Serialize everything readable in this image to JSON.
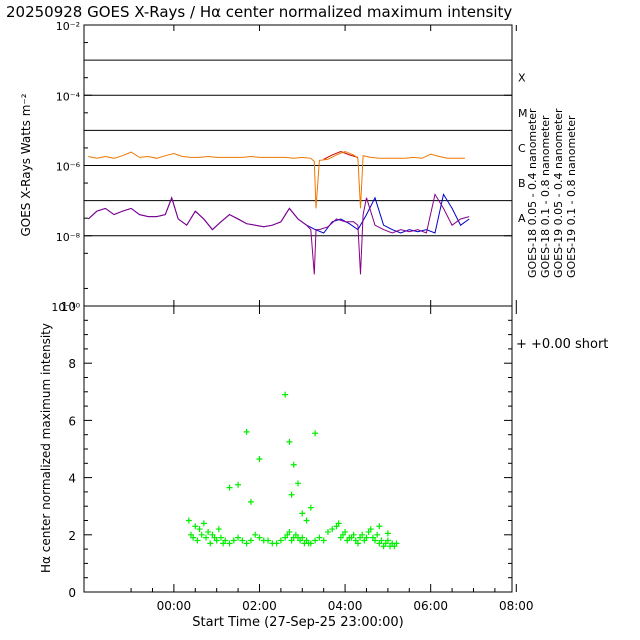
{
  "title": "20250928 GOES X-Rays / Hα center normalized maximum intensity",
  "colors": {
    "goes18_short": "#0000cc",
    "goes18_long": "#cc0000",
    "goes19_short": "#880088",
    "goes19_long": "#ee7700",
    "halpha": "#00ee00",
    "axis": "#000000"
  },
  "chart_data": [
    {
      "type": "line",
      "title": "GOES X-Rays",
      "ylabel": "GOES X-Rays Watts m⁻²",
      "yscale": "log",
      "ylim": [
        1e-10,
        0.01
      ],
      "ytick_labels": [
        "10⁻²",
        "10⁻⁴",
        "10⁻⁶",
        "10⁻⁸",
        "10⁻¹⁰"
      ],
      "flare_classes": [
        "X",
        "M",
        "C",
        "B",
        "A"
      ],
      "xlim_hours": [
        -1.1,
        8.9
      ],
      "legend": [
        "GOES-18  0.05 - 0.4 nanometer",
        "GOES-18  0.1 - 0.8 nanometer",
        "GOES-19  0.05 - 0.4 nanometer",
        "GOES-19  0.1 - 0.8 nanometer"
      ],
      "series": [
        {
          "name": "GOES-18 0.05-0.4 nm",
          "x": [
            -1.0,
            -0.8,
            -0.6,
            -0.4,
            -0.2,
            0.0,
            0.2,
            0.4,
            0.6,
            0.8,
            0.95,
            1.1,
            1.3,
            1.5,
            1.7,
            1.9,
            2.1,
            2.3,
            2.5,
            2.7,
            2.9,
            3.1,
            3.3,
            3.5,
            3.7,
            3.9,
            4.1,
            4.3,
            4.5,
            4.7,
            4.9,
            5.1,
            5.3,
            5.5,
            5.7,
            5.9,
            6.1,
            6.3,
            6.5,
            6.7,
            6.9,
            7.1,
            7.3,
            7.5,
            7.7,
            7.9
          ],
          "values": [
            3e-08,
            5e-08,
            6e-08,
            4e-08,
            5e-08,
            6e-08,
            4e-08,
            3.5e-08,
            3.5e-08,
            4e-08,
            1.2e-07,
            3e-08,
            2e-08,
            5e-08,
            3e-08,
            1.5e-08,
            2.5e-08,
            4e-08,
            3e-08,
            2.2e-08,
            2e-08,
            1.8e-08,
            2e-08,
            2.5e-08,
            6e-08,
            3e-08,
            2e-08,
            1.5e-08,
            1.2e-08,
            2.5e-08,
            3e-08,
            2.2e-08,
            1.5e-08,
            4e-08,
            1.2e-07,
            2e-08,
            1.5e-08,
            1.2e-08,
            1.5e-08,
            1.3e-08,
            1.5e-08,
            1.2e-08,
            1.5e-07,
            6e-08,
            2e-08,
            3e-08
          ]
        },
        {
          "name": "GOES-19 0.05-0.4 nm",
          "x": [
            -1.0,
            -0.8,
            -0.6,
            -0.4,
            -0.2,
            0.0,
            0.2,
            0.4,
            0.6,
            0.8,
            0.95,
            1.1,
            1.3,
            1.5,
            1.7,
            1.9,
            2.1,
            2.3,
            2.5,
            2.7,
            2.9,
            3.1,
            3.3,
            3.5,
            3.7,
            3.9,
            4.1,
            4.2,
            4.28,
            4.32,
            4.4,
            4.6,
            4.8,
            5.0,
            5.2,
            5.3,
            5.36,
            5.42,
            5.5,
            5.7,
            5.9,
            6.1,
            6.3,
            6.5,
            6.7,
            6.9,
            7.1,
            7.3,
            7.5,
            7.7,
            7.9
          ],
          "values": [
            3e-08,
            5e-08,
            6e-08,
            4e-08,
            5e-08,
            6e-08,
            4e-08,
            3.5e-08,
            3.5e-08,
            4e-08,
            1.2e-07,
            3e-08,
            2e-08,
            5e-08,
            3e-08,
            1.5e-08,
            2.5e-08,
            4e-08,
            3e-08,
            2.2e-08,
            2e-08,
            1.8e-08,
            2e-08,
            2.5e-08,
            6e-08,
            3e-08,
            2e-08,
            1.5e-08,
            8e-10,
            1.5e-08,
            1.5e-08,
            1.8e-08,
            3e-08,
            2.5e-08,
            2.5e-08,
            2e-08,
            8e-10,
            4e-08,
            1.2e-07,
            2e-08,
            1.5e-08,
            1.2e-08,
            1.5e-08,
            1.3e-08,
            1.5e-08,
            1.2e-08,
            1.5e-07,
            6e-08,
            2e-08,
            3e-08,
            3.5e-08
          ]
        },
        {
          "name": "GOES-18 0.1-0.8 nm",
          "x": [
            4.5,
            4.7,
            4.9,
            5.1,
            5.3
          ],
          "values": [
            1.5e-06,
            2e-06,
            2.5e-06,
            2e-06,
            1.7e-06
          ]
        },
        {
          "name": "GOES-19 0.1-0.8 nm",
          "x": [
            -1.0,
            -0.8,
            -0.6,
            -0.4,
            -0.2,
            0.0,
            0.2,
            0.4,
            0.6,
            0.8,
            1.0,
            1.2,
            1.4,
            1.6,
            1.8,
            2.0,
            2.2,
            2.4,
            2.6,
            2.8,
            3.0,
            3.2,
            3.4,
            3.6,
            3.8,
            4.0,
            4.2,
            4.28,
            4.32,
            4.4,
            4.6,
            4.8,
            5.0,
            5.2,
            5.3,
            5.36,
            5.42,
            5.6,
            5.8,
            6.0,
            6.2,
            6.4,
            6.6,
            6.8,
            7.0,
            7.2,
            7.4,
            7.6,
            7.8
          ],
          "values": [
            1.8e-06,
            1.6e-06,
            1.8e-06,
            1.6e-06,
            1.9e-06,
            2.4e-06,
            1.7e-06,
            1.8e-06,
            1.6e-06,
            1.9e-06,
            2.2e-06,
            1.8e-06,
            1.7e-06,
            1.7e-06,
            1.8e-06,
            1.7e-06,
            1.7e-06,
            1.7e-06,
            1.7e-06,
            1.8e-06,
            1.7e-06,
            1.7e-06,
            1.7e-06,
            1.7e-06,
            1.6e-06,
            1.7e-06,
            1.6e-06,
            1.3e-06,
            6e-08,
            1.4e-06,
            1.5e-06,
            2e-06,
            2.5e-06,
            2e-06,
            1.6e-06,
            6e-08,
            1.9e-06,
            1.7e-06,
            1.6e-06,
            1.6e-06,
            1.6e-06,
            1.6e-06,
            1.7e-06,
            1.6e-06,
            2.1e-06,
            1.8e-06,
            1.6e-06,
            1.6e-06,
            1.6e-06
          ]
        }
      ]
    },
    {
      "type": "scatter",
      "ylabel": "Hα center normalized maximum intensity",
      "xlabel": "Start Time (27-Sep-25 23:00:00)",
      "ylim": [
        0,
        10
      ],
      "yticks": [
        0,
        2,
        4,
        6,
        8,
        10
      ],
      "xlim_hours": [
        -1.1,
        8.9
      ],
      "xticks": [
        1,
        3,
        5,
        7,
        9
      ],
      "xtick_labels": [
        "00:00",
        "02:00",
        "04:00",
        "06:00",
        "08:00"
      ],
      "legend": "+  +0.00 short",
      "marker": "+",
      "points_x": [
        1.35,
        1.4,
        1.45,
        1.5,
        1.55,
        1.6,
        1.65,
        1.7,
        1.75,
        1.8,
        1.85,
        1.9,
        1.95,
        2.0,
        2.05,
        2.1,
        2.15,
        2.2,
        2.3,
        2.4,
        2.5,
        2.6,
        2.7,
        2.8,
        2.9,
        3.0,
        3.1,
        3.2,
        3.3,
        3.4,
        3.5,
        3.6,
        3.65,
        3.7,
        3.75,
        3.8,
        3.85,
        3.9,
        3.95,
        4.0,
        4.05,
        4.1,
        4.15,
        4.2,
        4.3,
        4.4,
        4.5,
        4.6,
        4.7,
        4.8,
        4.85,
        4.9,
        4.95,
        5.0,
        5.05,
        5.1,
        5.15,
        5.2,
        5.25,
        5.3,
        5.35,
        5.4,
        5.45,
        5.5,
        5.55,
        5.6,
        5.65,
        5.7,
        5.75,
        5.8,
        5.85,
        5.9,
        5.95,
        6.0,
        6.05,
        6.1,
        6.15,
        6.2,
        2.3,
        2.5,
        2.7,
        2.8,
        3.0,
        3.6,
        3.7,
        3.75,
        3.8,
        3.9,
        4.0,
        4.2,
        4.3,
        4.1,
        6.0,
        5.8
      ],
      "points_y": [
        2.5,
        2.0,
        1.9,
        2.3,
        1.8,
        2.2,
        2.0,
        2.4,
        1.9,
        2.1,
        1.7,
        2.0,
        1.9,
        1.8,
        2.2,
        1.9,
        1.7,
        1.8,
        1.7,
        1.8,
        1.9,
        1.8,
        1.7,
        1.8,
        2.0,
        1.9,
        1.8,
        1.8,
        1.7,
        1.7,
        1.8,
        1.9,
        2.0,
        2.1,
        1.8,
        1.9,
        2.0,
        1.9,
        1.8,
        1.9,
        1.7,
        1.8,
        1.7,
        1.7,
        1.8,
        1.9,
        1.8,
        2.1,
        2.2,
        2.3,
        2.4,
        1.9,
        2.0,
        2.1,
        1.8,
        1.9,
        1.9,
        2.0,
        1.8,
        1.7,
        1.9,
        2.0,
        1.8,
        1.9,
        2.1,
        2.2,
        1.9,
        1.8,
        2.0,
        1.7,
        1.8,
        1.6,
        1.7,
        1.8,
        1.6,
        1.7,
        1.6,
        1.7,
        3.65,
        3.75,
        5.6,
        3.15,
        4.65,
        6.9,
        5.25,
        3.4,
        4.45,
        3.8,
        2.75,
        2.95,
        5.55,
        2.5,
        2.05,
        2.3
      ]
    }
  ]
}
